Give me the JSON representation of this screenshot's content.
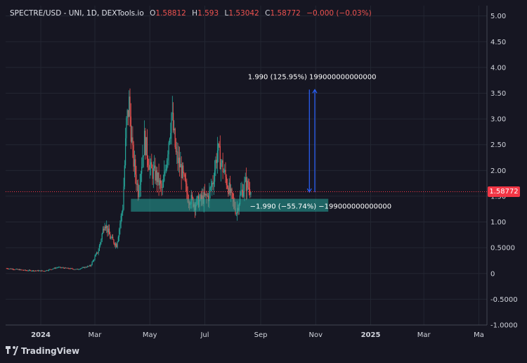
{
  "header": {
    "symbol": "SPECTRE/USD - UNI, 1D, DEXTools.io",
    "open_label": "O",
    "open_value": "1.58812",
    "high_label": "H",
    "high_value": "1.593",
    "low_label": "L",
    "low_value": "1.53042",
    "close_label": "C",
    "close_value": "1.58772",
    "change_value": "−0.000 (−0.03%)"
  },
  "price_tag": "1.58772",
  "footer": {
    "brand": "TradingView",
    "logo_icon": "tradingview-logo-icon"
  },
  "colors": {
    "background": "#161622",
    "up": "#26a69a",
    "down": "#ef5350",
    "measure_fill": "#26a69a",
    "arrow": "#2962ff",
    "price_line": "#f23645"
  },
  "chart_data": {
    "type": "candlestick",
    "ylim": [
      -1.0,
      5.2
    ],
    "y_ticks": [
      "5.00",
      "4.50",
      "4.00",
      "3.50",
      "3.00",
      "2.50",
      "2.00",
      "1.50",
      "1.00",
      "0.5000",
      "0",
      "-0.5000",
      "-1.0000"
    ],
    "y_tick_values": [
      5.0,
      4.5,
      4.0,
      3.5,
      3.0,
      2.5,
      2.0,
      1.5,
      1.0,
      0.5,
      0,
      -0.5,
      -1.0
    ],
    "x_ticks": [
      "2024",
      "Mar",
      "May",
      "Jul",
      "Sep",
      "Nov",
      "2025",
      "Mar",
      "Ma"
    ],
    "x_tick_dates": [
      "2024-01-01",
      "2024-03-01",
      "2024-05-01",
      "2024-07-01",
      "2024-09-01",
      "2024-11-01",
      "2025-01-01",
      "2025-03-01",
      "2025-05-01"
    ],
    "x_range": [
      "2023-11-23",
      "2025-05-10"
    ],
    "last_price": 1.58772,
    "price_path": [
      [
        "2023-11-24",
        0.1
      ],
      [
        "2023-12-15",
        0.06
      ],
      [
        "2024-01-05",
        0.05
      ],
      [
        "2024-01-20",
        0.12
      ],
      [
        "2024-02-10",
        0.08
      ],
      [
        "2024-02-25",
        0.15
      ],
      [
        "2024-03-05",
        0.45
      ],
      [
        "2024-03-12",
        1.0
      ],
      [
        "2024-03-18",
        0.7
      ],
      [
        "2024-03-25",
        0.55
      ],
      [
        "2024-04-01",
        1.3
      ],
      [
        "2024-04-05",
        2.9
      ],
      [
        "2024-04-08",
        3.3
      ],
      [
        "2024-04-12",
        2.3
      ],
      [
        "2024-04-18",
        1.6
      ],
      [
        "2024-04-25",
        2.6
      ],
      [
        "2024-05-02",
        2.0
      ],
      [
        "2024-05-08",
        1.9
      ],
      [
        "2024-05-15",
        1.6
      ],
      [
        "2024-05-20",
        2.3
      ],
      [
        "2024-05-25",
        3.1
      ],
      [
        "2024-05-30",
        2.3
      ],
      [
        "2024-06-05",
        2.0
      ],
      [
        "2024-06-12",
        1.5
      ],
      [
        "2024-06-20",
        1.35
      ],
      [
        "2024-06-28",
        1.45
      ],
      [
        "2024-07-05",
        1.5
      ],
      [
        "2024-07-10",
        1.8
      ],
      [
        "2024-07-15",
        2.4
      ],
      [
        "2024-07-20",
        2.1
      ],
      [
        "2024-07-25",
        1.8
      ],
      [
        "2024-08-01",
        1.4
      ],
      [
        "2024-08-05",
        1.2
      ],
      [
        "2024-08-10",
        1.55
      ],
      [
        "2024-08-15",
        1.75
      ],
      [
        "2024-08-22",
        1.58772
      ]
    ],
    "measure_tools": [
      {
        "type": "short-range",
        "label": "−1.990 (−55.74%) −199000000000000",
        "date_start": "2024-04-10",
        "date_end": "2024-11-15",
        "price_top": 1.45,
        "price_bottom": 1.2
      },
      {
        "type": "date-price-range",
        "label": "1.990 (125.95%) 199000000000000",
        "date_start": "2024-10-25",
        "date_end": "2024-10-31",
        "price_start": 1.58,
        "price_end": 3.57
      }
    ]
  }
}
